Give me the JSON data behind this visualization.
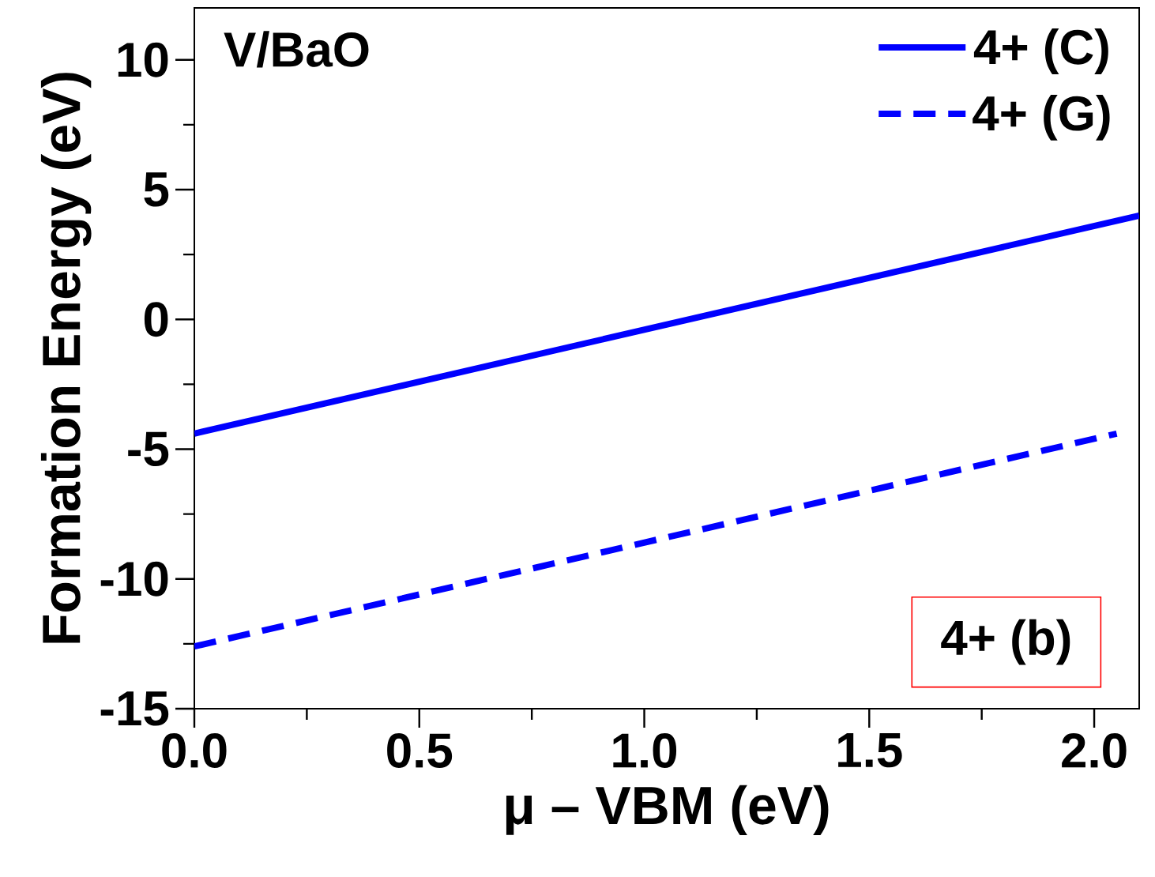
{
  "chart_data": {
    "type": "line",
    "xlabel": "μ – VBM (eV)",
    "ylabel": "Formation Energy (eV)",
    "annotations": [
      "V/BaO",
      "4+ (b)"
    ],
    "series": [
      {
        "name": "4+ (C)",
        "color": "#0000ff",
        "line_style": "solid",
        "x": [
          0,
          2.1
        ],
        "values": [
          -4.4,
          4.0
        ]
      },
      {
        "name": "4+ (G)",
        "color": "#0000ff",
        "line_style": "dashed",
        "x": [
          0,
          2.05
        ],
        "values": [
          -12.6,
          -4.4
        ]
      }
    ],
    "xlim": [
      0,
      2.1
    ],
    "ylim": [
      -15,
      12
    ],
    "xticks": [
      {
        "value": 0,
        "label": "0.0"
      },
      {
        "value": 0.5,
        "label": "0.5"
      },
      {
        "value": 1,
        "label": "1.0"
      },
      {
        "value": 1.5,
        "label": "1.5"
      },
      {
        "value": 2,
        "label": "2.0"
      }
    ],
    "yticks": [
      -15,
      -10,
      -5,
      0,
      5,
      10
    ],
    "legend": "top right"
  }
}
